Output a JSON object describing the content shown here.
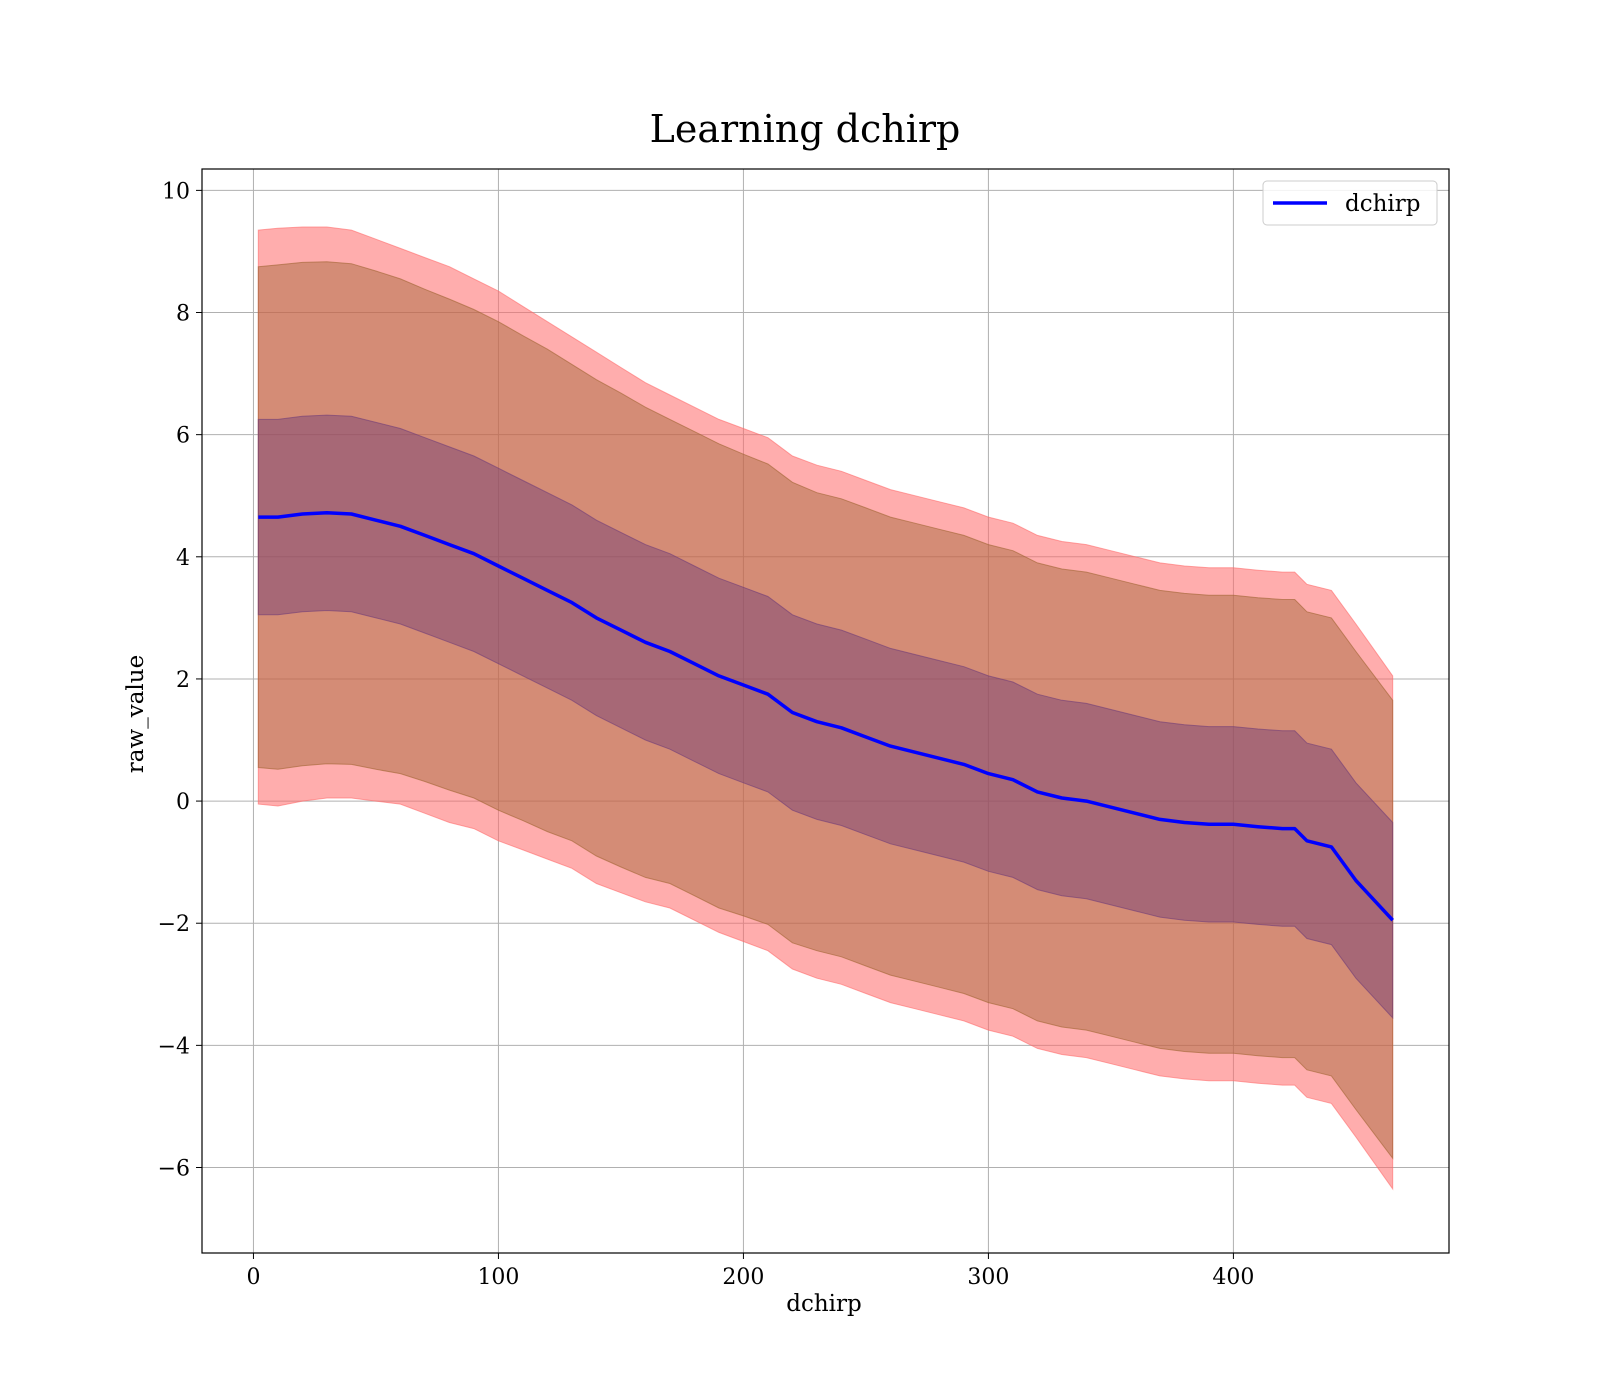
{
  "chart_data": {
    "type": "line",
    "title": "Learning dchirp",
    "xlabel": "dchirp",
    "ylabel": "raw_value",
    "xlim": [
      -21,
      488
    ],
    "ylim": [
      -7.4,
      10.35
    ],
    "xticks": [
      0,
      100,
      200,
      300,
      400
    ],
    "yticks": [
      -6,
      -4,
      -2,
      0,
      2,
      4,
      6,
      8,
      10
    ],
    "xtick_labels": [
      "0",
      "100",
      "200",
      "300",
      "400"
    ],
    "ytick_labels": [
      "−6",
      "−4",
      "−2",
      "0",
      "2",
      "4",
      "6",
      "8",
      "10"
    ],
    "grid": true,
    "legend": {
      "position": "top-right",
      "entries": [
        {
          "label": "dchirp",
          "color": "#0000ff"
        }
      ]
    },
    "x": [
      2,
      10,
      20,
      30,
      40,
      50,
      60,
      70,
      80,
      90,
      100,
      110,
      120,
      130,
      140,
      150,
      160,
      170,
      180,
      190,
      200,
      210,
      220,
      230,
      240,
      250,
      260,
      270,
      280,
      290,
      300,
      310,
      320,
      330,
      340,
      350,
      360,
      370,
      380,
      390,
      400,
      410,
      420,
      425,
      430,
      440,
      450,
      465
    ],
    "series": [
      {
        "name": "dchirp",
        "color": "#0000ff",
        "values": [
          4.65,
          4.65,
          4.7,
          4.72,
          4.7,
          4.6,
          4.5,
          4.35,
          4.2,
          4.05,
          3.85,
          3.65,
          3.45,
          3.25,
          3.0,
          2.8,
          2.6,
          2.45,
          2.25,
          2.05,
          1.9,
          1.75,
          1.45,
          1.3,
          1.2,
          1.05,
          0.9,
          0.8,
          0.7,
          0.6,
          0.45,
          0.35,
          0.15,
          0.05,
          0.0,
          -0.1,
          -0.2,
          -0.3,
          -0.35,
          -0.38,
          -0.38,
          -0.42,
          -0.45,
          -0.45,
          -0.65,
          -0.75,
          -1.3,
          -1.95
        ]
      }
    ],
    "bands": [
      {
        "color": "#ff6a6a",
        "opacity": 0.55,
        "upper": [
          9.35,
          9.38,
          9.4,
          9.4,
          9.35,
          9.2,
          9.05,
          8.9,
          8.75,
          8.55,
          8.35,
          8.1,
          7.85,
          7.6,
          7.35,
          7.1,
          6.85,
          6.65,
          6.45,
          6.25,
          6.1,
          5.95,
          5.65,
          5.5,
          5.4,
          5.25,
          5.1,
          5.0,
          4.9,
          4.8,
          4.65,
          4.55,
          4.35,
          4.25,
          4.2,
          4.1,
          4.0,
          3.9,
          3.85,
          3.82,
          3.82,
          3.78,
          3.75,
          3.75,
          3.55,
          3.45,
          2.9,
          2.05
        ],
        "lower": [
          -0.05,
          -0.08,
          0.0,
          0.05,
          0.05,
          0.0,
          -0.05,
          -0.2,
          -0.35,
          -0.45,
          -0.65,
          -0.8,
          -0.95,
          -1.1,
          -1.35,
          -1.5,
          -1.65,
          -1.75,
          -1.95,
          -2.15,
          -2.3,
          -2.45,
          -2.75,
          -2.9,
          -3.0,
          -3.15,
          -3.3,
          -3.4,
          -3.5,
          -3.6,
          -3.75,
          -3.85,
          -4.05,
          -4.15,
          -4.2,
          -4.3,
          -4.4,
          -4.5,
          -4.55,
          -4.58,
          -4.58,
          -4.62,
          -4.65,
          -4.65,
          -4.85,
          -4.95,
          -5.5,
          -6.35
        ]
      },
      {
        "color": "#a06432",
        "opacity": 0.45,
        "upper": [
          8.75,
          8.78,
          8.82,
          8.83,
          8.8,
          8.68,
          8.55,
          8.38,
          8.22,
          8.05,
          7.85,
          7.62,
          7.4,
          7.15,
          6.9,
          6.68,
          6.45,
          6.25,
          6.05,
          5.85,
          5.68,
          5.52,
          5.22,
          5.05,
          4.95,
          4.8,
          4.65,
          4.55,
          4.45,
          4.35,
          4.2,
          4.1,
          3.9,
          3.8,
          3.75,
          3.65,
          3.55,
          3.45,
          3.4,
          3.37,
          3.37,
          3.33,
          3.3,
          3.3,
          3.1,
          3.0,
          2.45,
          1.65
        ],
        "lower": [
          0.55,
          0.52,
          0.58,
          0.61,
          0.6,
          0.52,
          0.45,
          0.32,
          0.18,
          0.05,
          -0.15,
          -0.32,
          -0.5,
          -0.65,
          -0.9,
          -1.08,
          -1.25,
          -1.35,
          -1.55,
          -1.75,
          -1.88,
          -2.02,
          -2.32,
          -2.45,
          -2.55,
          -2.7,
          -2.85,
          -2.95,
          -3.05,
          -3.15,
          -3.3,
          -3.4,
          -3.6,
          -3.7,
          -3.75,
          -3.85,
          -3.95,
          -4.05,
          -4.1,
          -4.13,
          -4.13,
          -4.17,
          -4.2,
          -4.2,
          -4.4,
          -4.5,
          -5.05,
          -5.85
        ]
      },
      {
        "color": "#703c78",
        "opacity": 0.45,
        "upper": [
          6.25,
          6.25,
          6.3,
          6.32,
          6.3,
          6.2,
          6.1,
          5.95,
          5.8,
          5.65,
          5.45,
          5.25,
          5.05,
          4.85,
          4.6,
          4.4,
          4.2,
          4.05,
          3.85,
          3.65,
          3.5,
          3.35,
          3.05,
          2.9,
          2.8,
          2.65,
          2.5,
          2.4,
          2.3,
          2.2,
          2.05,
          1.95,
          1.75,
          1.65,
          1.6,
          1.5,
          1.4,
          1.3,
          1.25,
          1.22,
          1.22,
          1.18,
          1.15,
          1.15,
          0.95,
          0.85,
          0.3,
          -0.35
        ],
        "lower": [
          3.05,
          3.05,
          3.1,
          3.12,
          3.1,
          3.0,
          2.9,
          2.75,
          2.6,
          2.45,
          2.25,
          2.05,
          1.85,
          1.65,
          1.4,
          1.2,
          1.0,
          0.85,
          0.65,
          0.45,
          0.3,
          0.15,
          -0.15,
          -0.3,
          -0.4,
          -0.55,
          -0.7,
          -0.8,
          -0.9,
          -1.0,
          -1.15,
          -1.25,
          -1.45,
          -1.55,
          -1.6,
          -1.7,
          -1.8,
          -1.9,
          -1.95,
          -1.98,
          -1.98,
          -2.02,
          -2.05,
          -2.05,
          -2.25,
          -2.35,
          -2.9,
          -3.55
        ]
      }
    ]
  }
}
